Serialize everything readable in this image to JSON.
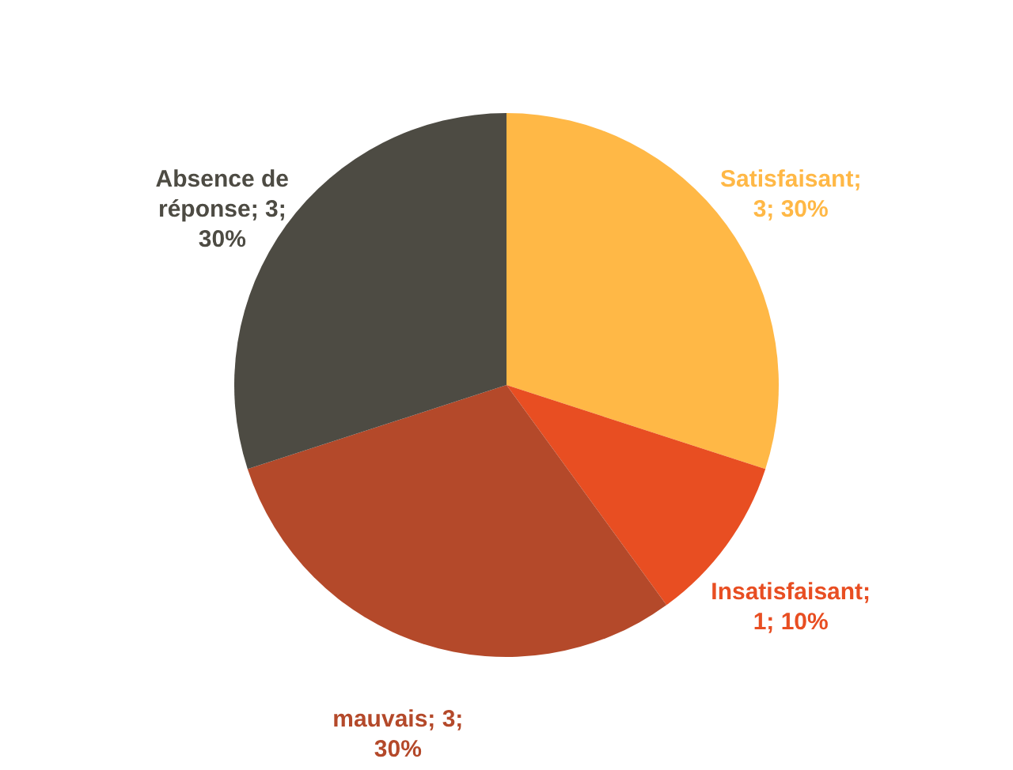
{
  "chart_data": {
    "type": "pie",
    "categories": [
      "Satisfaisant",
      "Insatisfaisant",
      "mauvais",
      "Absence de réponse"
    ],
    "values": [
      3,
      1,
      3,
      3
    ],
    "colors": [
      "#ffb846",
      "#e84e22",
      "#b4492a",
      "#4d4b43"
    ],
    "value_labels": [
      "; 3; 30%",
      "; 1; 10%",
      "; 3; 30%",
      "; 3; 30%"
    ]
  }
}
